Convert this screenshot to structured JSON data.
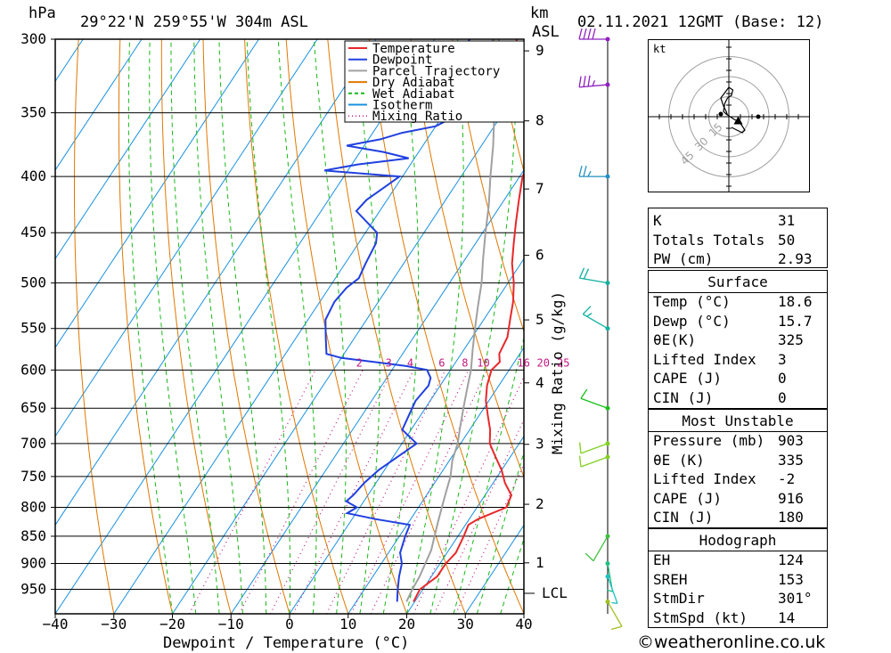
{
  "header": {
    "hpa_label": "hPa",
    "location": "29°22'N  259°55'W  304m  ASL",
    "km_label": "km",
    "asl_label": "ASL",
    "datetime": "02.11.2021  12GMT  (Base: 12)"
  },
  "chart_data": {
    "type": "line",
    "title": "29°22'N  259°55'W  304m  ASL",
    "xlabel": "Dewpoint / Temperature (°C)",
    "ylabel": "hPa",
    "x_ticks": [
      -40,
      -30,
      -20,
      -10,
      0,
      10,
      20,
      30,
      40
    ],
    "p_ticks": [
      300,
      350,
      400,
      450,
      500,
      550,
      600,
      650,
      700,
      750,
      800,
      850,
      900,
      950
    ],
    "xlim": [
      -40,
      40
    ],
    "plim": [
      300,
      1000
    ],
    "height_ticks_km": [
      1,
      2,
      3,
      4,
      5,
      6,
      7,
      8,
      9
    ],
    "lcl_label": "LCL",
    "mixing_ratio_axis_label": "Mixing Ratio (g/kg)",
    "mixing_ratio_values": [
      1,
      2,
      3,
      4,
      6,
      8,
      10,
      16,
      20,
      25
    ],
    "mixing_ratio_labels": [
      "2",
      "3",
      "4",
      "6",
      "8",
      "10",
      "16",
      "20",
      "25"
    ],
    "legend": {
      "placement": "top-right",
      "items": [
        {
          "name": "Temperature",
          "color": "#e8282b",
          "style": "solid"
        },
        {
          "name": "Dewpoint",
          "color": "#2040e0",
          "style": "solid"
        },
        {
          "name": "Parcel Trajectory",
          "color": "#a0a0a0",
          "style": "solid"
        },
        {
          "name": "Dry Adiabat",
          "color": "#e07800",
          "style": "solid"
        },
        {
          "name": "Wet Adiabat",
          "color": "#18b818",
          "style": "dashed"
        },
        {
          "name": "Isotherm",
          "color": "#1890e0",
          "style": "solid"
        },
        {
          "name": "Mixing Ratio",
          "color": "#c01880",
          "style": "dotted"
        }
      ]
    },
    "series": [
      {
        "name": "Temperature",
        "color": "#e8282b",
        "points": [
          [
            975,
            19.8
          ],
          [
            950,
            19.5
          ],
          [
            925,
            21.0
          ],
          [
            900,
            21.0
          ],
          [
            880,
            21.5
          ],
          [
            850,
            21.0
          ],
          [
            830,
            20.5
          ],
          [
            820,
            21.5
          ],
          [
            800,
            25.0
          ],
          [
            780,
            24.5
          ],
          [
            760,
            22.0
          ],
          [
            740,
            20.0
          ],
          [
            720,
            17.5
          ],
          [
            700,
            15.0
          ],
          [
            680,
            13.5
          ],
          [
            660,
            11.5
          ],
          [
            640,
            9.5
          ],
          [
            620,
            8.0
          ],
          [
            600,
            7.0
          ],
          [
            590,
            7.5
          ],
          [
            580,
            6.5
          ],
          [
            560,
            6.0
          ],
          [
            540,
            4.5
          ],
          [
            520,
            3.0
          ],
          [
            500,
            1.0
          ],
          [
            480,
            -1.5
          ],
          [
            460,
            -3.5
          ],
          [
            440,
            -5.5
          ],
          [
            420,
            -7.5
          ],
          [
            400,
            -9.5
          ],
          [
            390,
            -9.8
          ],
          [
            380,
            -11.0
          ],
          [
            370,
            -12.5
          ],
          [
            360,
            -14.5
          ],
          [
            350,
            -17.5
          ],
          [
            330,
            -20.5
          ],
          [
            320,
            -22.5
          ],
          [
            300,
            -26.0
          ]
        ]
      },
      {
        "name": "Dewpoint",
        "color": "#2040e0",
        "points": [
          [
            975,
            17.0
          ],
          [
            950,
            15.7
          ],
          [
            925,
            14.5
          ],
          [
            900,
            13.5
          ],
          [
            880,
            12.0
          ],
          [
            850,
            11.0
          ],
          [
            830,
            10.5
          ],
          [
            820,
            4.0
          ],
          [
            810,
            -1.5
          ],
          [
            800,
            -0.5
          ],
          [
            790,
            -3.0
          ],
          [
            780,
            -2.5
          ],
          [
            760,
            -2.0
          ],
          [
            740,
            -1.0
          ],
          [
            700,
            2.5
          ],
          [
            690,
            0.5
          ],
          [
            680,
            -1.5
          ],
          [
            660,
            -2.0
          ],
          [
            640,
            -2.5
          ],
          [
            620,
            -2.0
          ],
          [
            610,
            -2.5
          ],
          [
            600,
            -4.0
          ],
          [
            595,
            -8.0
          ],
          [
            590,
            -14.0
          ],
          [
            585,
            -20.0
          ],
          [
            580,
            -23.0
          ],
          [
            560,
            -25.0
          ],
          [
            540,
            -27.0
          ],
          [
            520,
            -27.5
          ],
          [
            505,
            -27.0
          ],
          [
            495,
            -26.0
          ],
          [
            480,
            -26.5
          ],
          [
            460,
            -27.0
          ],
          [
            450,
            -28.0
          ],
          [
            430,
            -34.0
          ],
          [
            420,
            -33.5
          ],
          [
            410,
            -32.0
          ],
          [
            400,
            -30.5
          ],
          [
            395,
            -44.0
          ],
          [
            390,
            -39.0
          ],
          [
            385,
            -31.0
          ],
          [
            380,
            -36.0
          ],
          [
            375,
            -43.0
          ],
          [
            370,
            -38.0
          ],
          [
            365,
            -35.0
          ],
          [
            360,
            -30.0
          ],
          [
            350,
            -27.0
          ],
          [
            340,
            -27.5
          ],
          [
            330,
            -33.0
          ],
          [
            320,
            -35.0
          ],
          [
            310,
            -34.0
          ],
          [
            300,
            -34.0
          ]
        ]
      },
      {
        "name": "Parcel Trajectory",
        "color": "#a0a0a0",
        "points": [
          [
            975,
            18.6
          ],
          [
            950,
            18.2
          ],
          [
            925,
            18.0
          ],
          [
            900,
            17.5
          ],
          [
            875,
            17.0
          ],
          [
            850,
            16.0
          ],
          [
            825,
            15.0
          ],
          [
            800,
            14.0
          ],
          [
            775,
            13.0
          ],
          [
            750,
            12.0
          ],
          [
            725,
            10.5
          ],
          [
            700,
            9.5
          ],
          [
            675,
            8.0
          ],
          [
            650,
            6.5
          ],
          [
            625,
            5.0
          ],
          [
            600,
            3.5
          ],
          [
            575,
            1.5
          ],
          [
            550,
            -0.5
          ],
          [
            525,
            -2.5
          ],
          [
            500,
            -4.5
          ],
          [
            475,
            -7.0
          ],
          [
            450,
            -9.5
          ],
          [
            425,
            -12.0
          ],
          [
            400,
            -15.0
          ],
          [
            375,
            -18.0
          ],
          [
            350,
            -21.5
          ],
          [
            325,
            -25.0
          ],
          [
            300,
            -29.0
          ]
        ]
      }
    ]
  },
  "legend_labels": [
    "Temperature",
    "Dewpoint",
    "Parcel Trajectory",
    "Dry Adiabat",
    "Wet Adiabat",
    "Isotherm",
    "Mixing Ratio"
  ],
  "wind_profile": {
    "barbs": [
      {
        "p": 300,
        "dir": 270,
        "kt": 40,
        "color": "#9020c0"
      },
      {
        "p": 330,
        "dir": 265,
        "kt": 35,
        "color": "#9020c0"
      },
      {
        "p": 400,
        "dir": 270,
        "kt": 25,
        "color": "#2090c0"
      },
      {
        "p": 500,
        "dir": 280,
        "kt": 20,
        "color": "#10b0a0"
      },
      {
        "p": 550,
        "dir": 300,
        "kt": 15,
        "color": "#10b0a0"
      },
      {
        "p": 650,
        "dir": 290,
        "kt": 10,
        "color": "#18c018"
      },
      {
        "p": 700,
        "dir": 250,
        "kt": 10,
        "color": "#80d020"
      },
      {
        "p": 720,
        "dir": 250,
        "kt": 10,
        "color": "#80d020"
      },
      {
        "p": 850,
        "dir": 210,
        "kt": 10,
        "color": "#40c040"
      },
      {
        "p": 900,
        "dir": 170,
        "kt": 5,
        "color": "#20c080"
      },
      {
        "p": 925,
        "dir": 160,
        "kt": 5,
        "color": "#20c0c0"
      },
      {
        "p": 975,
        "dir": 150,
        "kt": 10,
        "color": "#a0c020"
      }
    ]
  },
  "hodograph": {
    "unit_label": "kt",
    "ring_labels": [
      "15",
      "30",
      "45"
    ],
    "ring_speeds_kt": [
      15,
      30,
      45
    ],
    "trace_kt": [
      [
        2,
        -8
      ],
      [
        6,
        -10
      ],
      [
        10,
        -12
      ],
      [
        12,
        -10
      ],
      [
        8,
        -4
      ],
      [
        4,
        -2
      ],
      [
        1,
        0
      ],
      [
        -2,
        2
      ],
      [
        -4,
        4
      ],
      [
        -3,
        10
      ],
      [
        -1,
        14
      ],
      [
        2,
        16
      ],
      [
        3,
        20
      ],
      [
        0,
        22
      ],
      [
        -3,
        18
      ],
      [
        -6,
        14
      ],
      [
        -4,
        8
      ],
      [
        -2,
        4
      ],
      [
        -1,
        1
      ]
    ],
    "storm_motion_kt": [
      7,
      -3
    ],
    "surface_point_kt": [
      -6,
      2
    ],
    "trace_color": "#000000",
    "ring_color": "#a0a0a0"
  },
  "indices": {
    "top": [
      {
        "label": "K",
        "value": "31"
      },
      {
        "label": "Totals Totals",
        "value": "50"
      },
      {
        "label": "PW (cm)",
        "value": "2.93"
      }
    ],
    "surface": {
      "title": "Surface",
      "rows": [
        {
          "label": "Temp (°C)",
          "value": "18.6"
        },
        {
          "label": "Dewp (°C)",
          "value": "15.7"
        },
        {
          "label": "θE(K)",
          "value": "325"
        },
        {
          "label": "Lifted Index",
          "value": "3"
        },
        {
          "label": "CAPE (J)",
          "value": "0"
        },
        {
          "label": "CIN (J)",
          "value": "0"
        }
      ]
    },
    "most_unstable": {
      "title": "Most Unstable",
      "rows": [
        {
          "label": "Pressure (mb)",
          "value": "903"
        },
        {
          "label": "θE (K)",
          "value": "335"
        },
        {
          "label": "Lifted Index",
          "value": "-2"
        },
        {
          "label": "CAPE (J)",
          "value": "916"
        },
        {
          "label": "CIN (J)",
          "value": "180"
        }
      ]
    },
    "hodograph_params": {
      "title": "Hodograph",
      "rows": [
        {
          "label": "EH",
          "value": "124"
        },
        {
          "label": "SREH",
          "value": "153"
        },
        {
          "label": "StmDir",
          "value": "301°"
        },
        {
          "label": "StmSpd (kt)",
          "value": "14"
        }
      ]
    }
  },
  "footer": "©weatheronline.co.uk"
}
